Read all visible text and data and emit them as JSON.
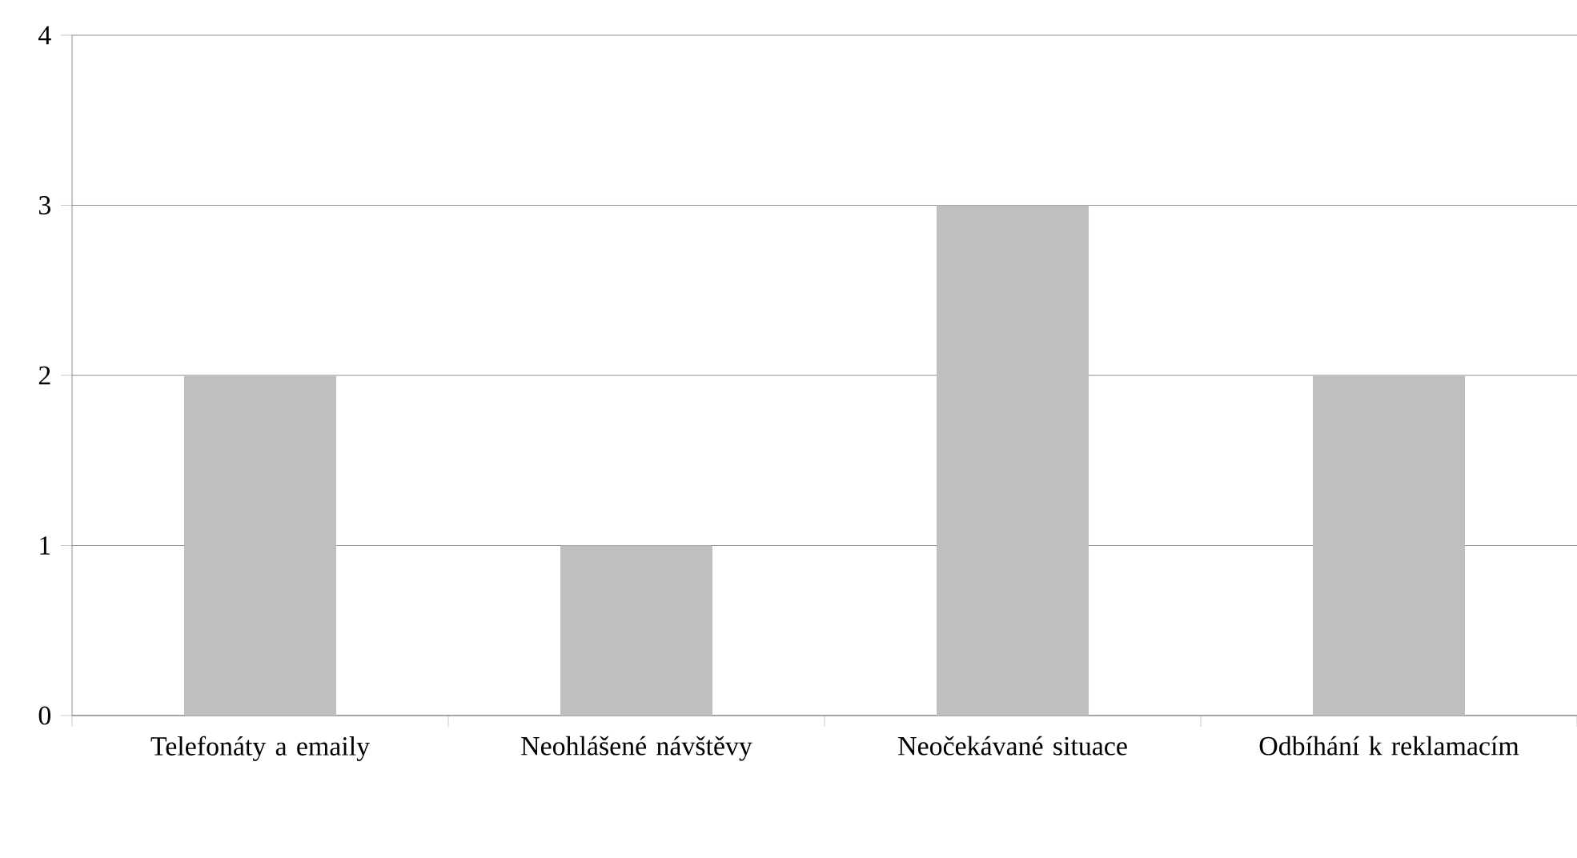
{
  "chart_data": {
    "type": "bar",
    "categories": [
      "Telefonáty a emaily",
      "Neohlášené návštěvy",
      "Neočekávané situace",
      "Odbíhání k reklamacím"
    ],
    "values": [
      2,
      1,
      3,
      2
    ],
    "color": "#bfbfbf",
    "ylim": [
      0,
      4
    ],
    "yticks": [
      0,
      1,
      2,
      3,
      4
    ],
    "grid": "y"
  }
}
